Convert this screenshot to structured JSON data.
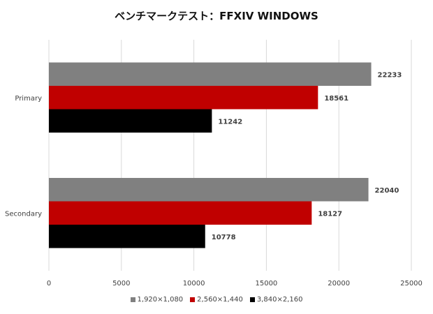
{
  "chart_data": {
    "type": "bar",
    "orientation": "horizontal",
    "title": "ベンチマークテスト：FFXIV WINDOWS",
    "categories": [
      "Primary",
      "Secondary"
    ],
    "series": [
      {
        "name": "1,920×1,080",
        "color": "#808080",
        "values": [
          22233,
          22040
        ]
      },
      {
        "name": "2,560×1,440",
        "color": "#C00000",
        "values": [
          18561,
          18127
        ]
      },
      {
        "name": "3,840×2,160",
        "color": "#000000",
        "values": [
          11242,
          10778
        ]
      }
    ],
    "xlim": [
      0,
      25000
    ],
    "xticks": [
      "0",
      "5000",
      "10000",
      "15000",
      "20000",
      "25000"
    ],
    "grid": true,
    "legend_position": "bottom"
  }
}
